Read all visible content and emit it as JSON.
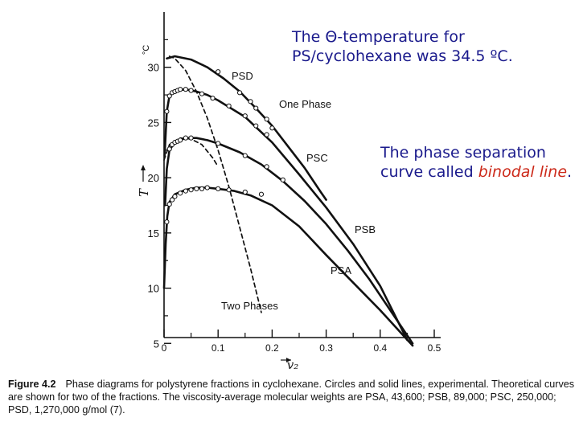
{
  "notes": {
    "theta_line1": "The Θ-temperature for",
    "theta_line2": "PS/cyclohexane was 34.5 ºC.",
    "phase_line1": "The phase separation",
    "phase_line2_prefix": "curve called ",
    "phase_line2_emph": "binodal line",
    "phase_line2_suffix": "."
  },
  "caption": {
    "label": "Figure 4.2",
    "text": "Phase diagrams for polystyrene fractions in cyclohexane. Circles and solid lines, experimental. Theoretical curves are shown for two of the fractions. The viscosity-average molecular weights are PSA, 43,600; PSB, 89,000; PSC, 250,000; PSD, 1,270,000 g/mol (7)."
  },
  "colors": {
    "note_text": "#1a1a8c",
    "note_emphasis": "#cc2a1a",
    "ink": "#111111"
  },
  "chart_data": {
    "type": "line",
    "xlabel": "v₂",
    "ylabel": "T",
    "yunit": "°C",
    "xlim": [
      0,
      0.5
    ],
    "ylim": [
      4,
      35
    ],
    "xticks": [
      "0",
      "0.1",
      "0.2",
      "0.3",
      "0.4",
      "0.5"
    ],
    "yticks": [
      "5",
      "10",
      "15",
      "20",
      "25",
      "30"
    ],
    "annotations": [
      "PSD",
      "One Phase",
      "PSC",
      "PSB",
      "PSA",
      "Two Phases"
    ],
    "series": [
      {
        "name": "PSD",
        "style": "solid",
        "x": [
          0.005,
          0.02,
          0.05,
          0.08,
          0.11,
          0.14,
          0.17,
          0.2,
          0.23,
          0.26,
          0.29,
          0.3
        ],
        "y": [
          30.8,
          31.0,
          30.7,
          30.0,
          29.0,
          27.8,
          26.3,
          24.7,
          22.8,
          20.9,
          18.7,
          18.0
        ],
        "points_x": [
          0.1,
          0.14,
          0.16,
          0.17,
          0.19,
          0.2
        ],
        "points_y": [
          29.6,
          27.7,
          26.9,
          26.3,
          25.3,
          24.5
        ]
      },
      {
        "name": "PSC",
        "style": "solid",
        "x": [
          0.002,
          0.005,
          0.01,
          0.02,
          0.04,
          0.06,
          0.08,
          0.1,
          0.14,
          0.18,
          0.22,
          0.26,
          0.3,
          0.34,
          0.38,
          0.42,
          0.46
        ],
        "y": [
          17.5,
          20.8,
          22.5,
          23.2,
          23.6,
          23.6,
          23.4,
          23.1,
          22.3,
          21.2,
          19.7,
          17.9,
          15.8,
          13.4,
          10.8,
          7.9,
          5.0
        ],
        "points_x": [
          0.01,
          0.015,
          0.02,
          0.025,
          0.03,
          0.04,
          0.05,
          0.1,
          0.15,
          0.19,
          0.22
        ],
        "points_y": [
          22.6,
          23.0,
          23.2,
          23.3,
          23.4,
          23.6,
          23.6,
          23.1,
          22.0,
          21.0,
          19.8
        ]
      },
      {
        "name": "PSB",
        "style": "solid",
        "x": [
          0.001,
          0.005,
          0.01,
          0.02,
          0.04,
          0.06,
          0.08,
          0.1,
          0.15,
          0.2,
          0.25,
          0.3,
          0.35,
          0.4,
          0.45
        ],
        "y": [
          22.0,
          26.0,
          27.4,
          27.9,
          28.0,
          27.8,
          27.5,
          27.0,
          25.5,
          23.2,
          20.3,
          17.3,
          14.0,
          10.2,
          5.3
        ],
        "points_x": [
          0.005,
          0.01,
          0.015,
          0.02,
          0.025,
          0.03,
          0.04,
          0.05,
          0.07,
          0.09,
          0.12,
          0.15,
          0.17,
          0.19
        ],
        "points_y": [
          26.0,
          27.4,
          27.7,
          27.8,
          27.9,
          28.0,
          28.0,
          27.9,
          27.6,
          27.2,
          26.5,
          25.6,
          24.7,
          23.9
        ]
      },
      {
        "name": "PSA",
        "style": "solid",
        "x": [
          0.0,
          0.003,
          0.006,
          0.01,
          0.02,
          0.04,
          0.06,
          0.08,
          0.1,
          0.13,
          0.16,
          0.2,
          0.25,
          0.3,
          0.35,
          0.4,
          0.46
        ],
        "y": [
          10.0,
          14.0,
          16.5,
          17.8,
          18.5,
          18.9,
          19.1,
          19.1,
          19.0,
          18.8,
          18.4,
          17.5,
          15.6,
          13.0,
          10.5,
          8.0,
          4.8
        ],
        "points_x": [
          0.005,
          0.01,
          0.015,
          0.02,
          0.03,
          0.04,
          0.05,
          0.06,
          0.07,
          0.08,
          0.1,
          0.12,
          0.15,
          0.18
        ],
        "points_y": [
          16.0,
          17.6,
          18.0,
          18.3,
          18.6,
          18.8,
          18.9,
          19.0,
          19.0,
          19.1,
          19.0,
          18.9,
          18.7,
          18.5
        ]
      },
      {
        "name": "",
        "style": "dashed",
        "x": [
          0.01,
          0.02,
          0.04,
          0.06,
          0.08,
          0.1,
          0.12,
          0.14,
          0.16,
          0.18
        ],
        "y": [
          31.0,
          30.8,
          29.7,
          27.8,
          25.4,
          22.5,
          19.2,
          15.5,
          11.8,
          7.8
        ]
      },
      {
        "name": "",
        "style": "dashed",
        "x": [
          0.0,
          0.01,
          0.03,
          0.05,
          0.07,
          0.09,
          0.1
        ],
        "y": [
          21.6,
          23.0,
          23.6,
          23.5,
          23.0,
          21.8,
          21.0
        ]
      }
    ]
  }
}
